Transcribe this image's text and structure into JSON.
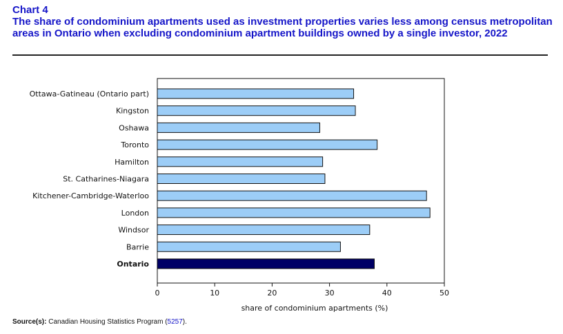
{
  "header": {
    "chart_number": "Chart 4",
    "title": "The share of condominium apartments used as investment properties varies less among census metropolitan areas in Ontario when excluding condominium apartment buildings owned by a single investor, 2022"
  },
  "source": {
    "label": "Source(s):",
    "text": "Canadian Housing Statistics Program (",
    "link": "5257",
    "suffix": ")."
  },
  "colors": {
    "bar": "#9ccdf7",
    "highlight": "#000066",
    "bar_stroke": "#111111"
  },
  "chart_data": {
    "type": "bar",
    "orientation": "horizontal",
    "title": "The share of condominium apartments used as investment properties varies less among census metropolitan areas in Ontario when excluding condominium apartment buildings owned by a single investor, 2022",
    "categories": [
      "Ottawa-Gatineau (Ontario part)",
      "Kingston",
      "Oshawa",
      "Toronto",
      "Hamilton",
      "St. Catharines-Niagara",
      "Kitchener-Cambridge-Waterloo",
      "London",
      "Windsor",
      "Barrie",
      "Ontario"
    ],
    "values": [
      34.2,
      34.5,
      28.3,
      38.3,
      28.8,
      29.2,
      46.9,
      47.5,
      37.0,
      31.9,
      37.8
    ],
    "highlight_category": "Ontario",
    "xlabel": "share of condominium apartments (%)",
    "ylabel": "",
    "xlim": [
      0,
      50
    ],
    "xticks": [
      0,
      10,
      20,
      30,
      40,
      50
    ],
    "grid": false
  }
}
